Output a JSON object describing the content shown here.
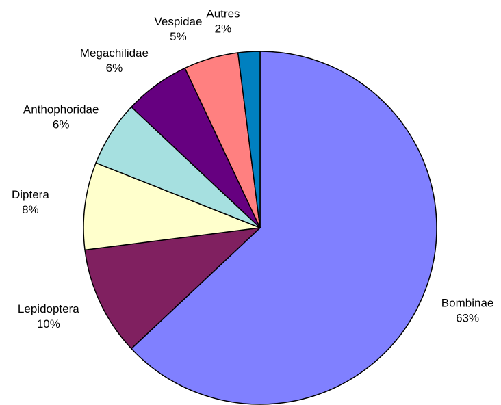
{
  "chart_data": {
    "type": "pie",
    "categories": [
      "Bombinae",
      "Lepidoptera",
      "Diptera",
      "Anthophoridae",
      "Megachilidae",
      "Vespidae",
      "Autres"
    ],
    "values": [
      63,
      10,
      8,
      6,
      6,
      5,
      2
    ],
    "value_labels": [
      "63%",
      "10%",
      "8%",
      "6%",
      "6%",
      "5%",
      "2%"
    ],
    "colors": [
      "#8080ff",
      "#802060",
      "#ffffcc",
      "#a6e0e0",
      "#660080",
      "#ff8080",
      "#0080c0"
    ]
  }
}
